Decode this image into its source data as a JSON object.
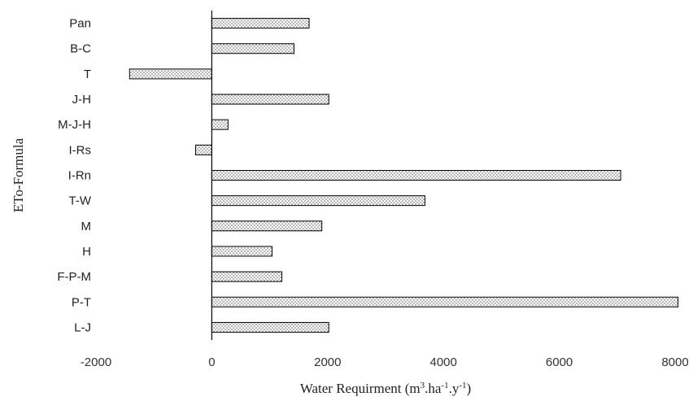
{
  "chart_data": {
    "type": "bar",
    "orientation": "horizontal",
    "categories": [
      "Pan",
      "B-C",
      "T",
      "J-H",
      "M-J-H",
      "I-Rs",
      "I-Rn",
      "T-W",
      "M",
      "H",
      "F-P-M",
      "P-T",
      "L-J"
    ],
    "values": [
      1680,
      1420,
      -1420,
      2020,
      280,
      -280,
      7060,
      3680,
      1900,
      1040,
      1210,
      8050,
      2020
    ],
    "xlim": [
      -2000,
      8000
    ],
    "xticks": [
      "-2000",
      "0",
      "2000",
      "4000",
      "6000",
      "8000"
    ],
    "xlabel": {
      "main": "Water Requirment (m",
      "sup1": "3",
      "mid1": ".ha",
      "sup2": "-1",
      "mid2": ".y",
      "sup3": "-1",
      "end": ")"
    },
    "ylabel": "ETo-Formula",
    "bar_pattern": "dotted",
    "grid": false,
    "legend": "none"
  }
}
